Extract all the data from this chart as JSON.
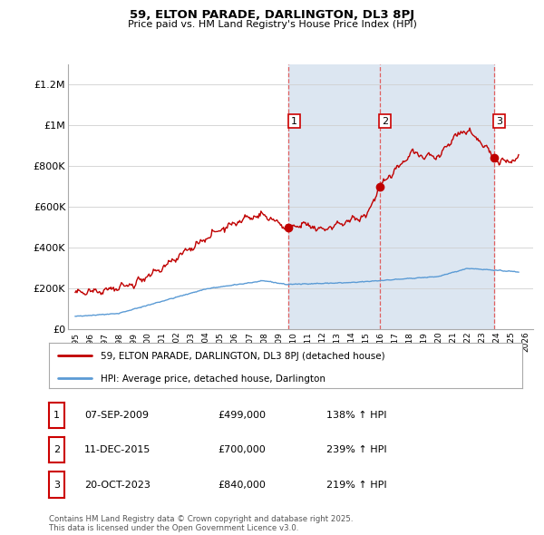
{
  "title": "59, ELTON PARADE, DARLINGTON, DL3 8PJ",
  "subtitle": "Price paid vs. HM Land Registry's House Price Index (HPI)",
  "hpi_label": "HPI: Average price, detached house, Darlington",
  "property_label": "59, ELTON PARADE, DARLINGTON, DL3 8PJ (detached house)",
  "footer": "Contains HM Land Registry data © Crown copyright and database right 2025.\nThis data is licensed under the Open Government Licence v3.0.",
  "sales": [
    {
      "date_num": 2009.68,
      "price": 499000,
      "label": "1",
      "date_str": "07-SEP-2009",
      "pct": "138% ↑ HPI"
    },
    {
      "date_num": 2015.94,
      "price": 700000,
      "label": "2",
      "date_str": "11-DEC-2015",
      "pct": "239% ↑ HPI"
    },
    {
      "date_num": 2023.8,
      "price": 840000,
      "label": "3",
      "date_str": "20-OCT-2023",
      "pct": "219% ↑ HPI"
    }
  ],
  "ylim": [
    0,
    1300000
  ],
  "xlim": [
    1994.5,
    2026.5
  ],
  "yticks": [
    0,
    200000,
    400000,
    600000,
    800000,
    1000000,
    1200000
  ],
  "ytick_labels": [
    "£0",
    "£200K",
    "£400K",
    "£600K",
    "£800K",
    "£1M",
    "£1.2M"
  ],
  "xticks": [
    1995,
    1996,
    1997,
    1998,
    1999,
    2000,
    2001,
    2002,
    2003,
    2004,
    2005,
    2006,
    2007,
    2008,
    2009,
    2010,
    2011,
    2012,
    2013,
    2014,
    2015,
    2016,
    2017,
    2018,
    2019,
    2020,
    2021,
    2022,
    2023,
    2024,
    2025,
    2026
  ],
  "hpi_color": "#5b9bd5",
  "property_color": "#c00000",
  "vline_color": "#e06060",
  "shade_color": "#dce6f1",
  "background_color": "#ffffff",
  "grid_color": "#d0d0d0",
  "label_box_color": "#cc0000"
}
